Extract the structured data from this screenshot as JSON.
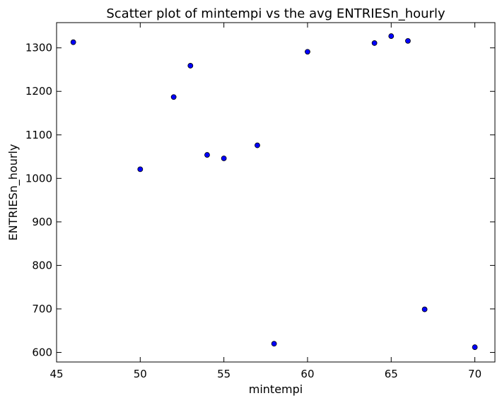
{
  "chart_data": {
    "type": "scatter",
    "title": "Scatter plot of mintempi vs the avg ENTRIESn_hourly",
    "xlabel": "mintempi",
    "ylabel": "ENTRIESn_hourly",
    "xlim": [
      45,
      71.2
    ],
    "ylim": [
      578,
      1358
    ],
    "xticks": [
      45,
      50,
      55,
      60,
      65,
      70
    ],
    "yticks": [
      600,
      700,
      800,
      900,
      1000,
      1100,
      1200,
      1300
    ],
    "grid": false,
    "marker_color": "#0000ff",
    "marker_edge_color": "#000000",
    "points": [
      {
        "x": 46,
        "y": 1313
      },
      {
        "x": 50,
        "y": 1021
      },
      {
        "x": 52,
        "y": 1187
      },
      {
        "x": 53,
        "y": 1259
      },
      {
        "x": 54,
        "y": 1054
      },
      {
        "x": 55,
        "y": 1046
      },
      {
        "x": 57,
        "y": 1076
      },
      {
        "x": 58,
        "y": 620
      },
      {
        "x": 60,
        "y": 1291
      },
      {
        "x": 64,
        "y": 1311
      },
      {
        "x": 65,
        "y": 1327
      },
      {
        "x": 66,
        "y": 1316
      },
      {
        "x": 67,
        "y": 699
      },
      {
        "x": 70,
        "y": 612
      }
    ]
  }
}
